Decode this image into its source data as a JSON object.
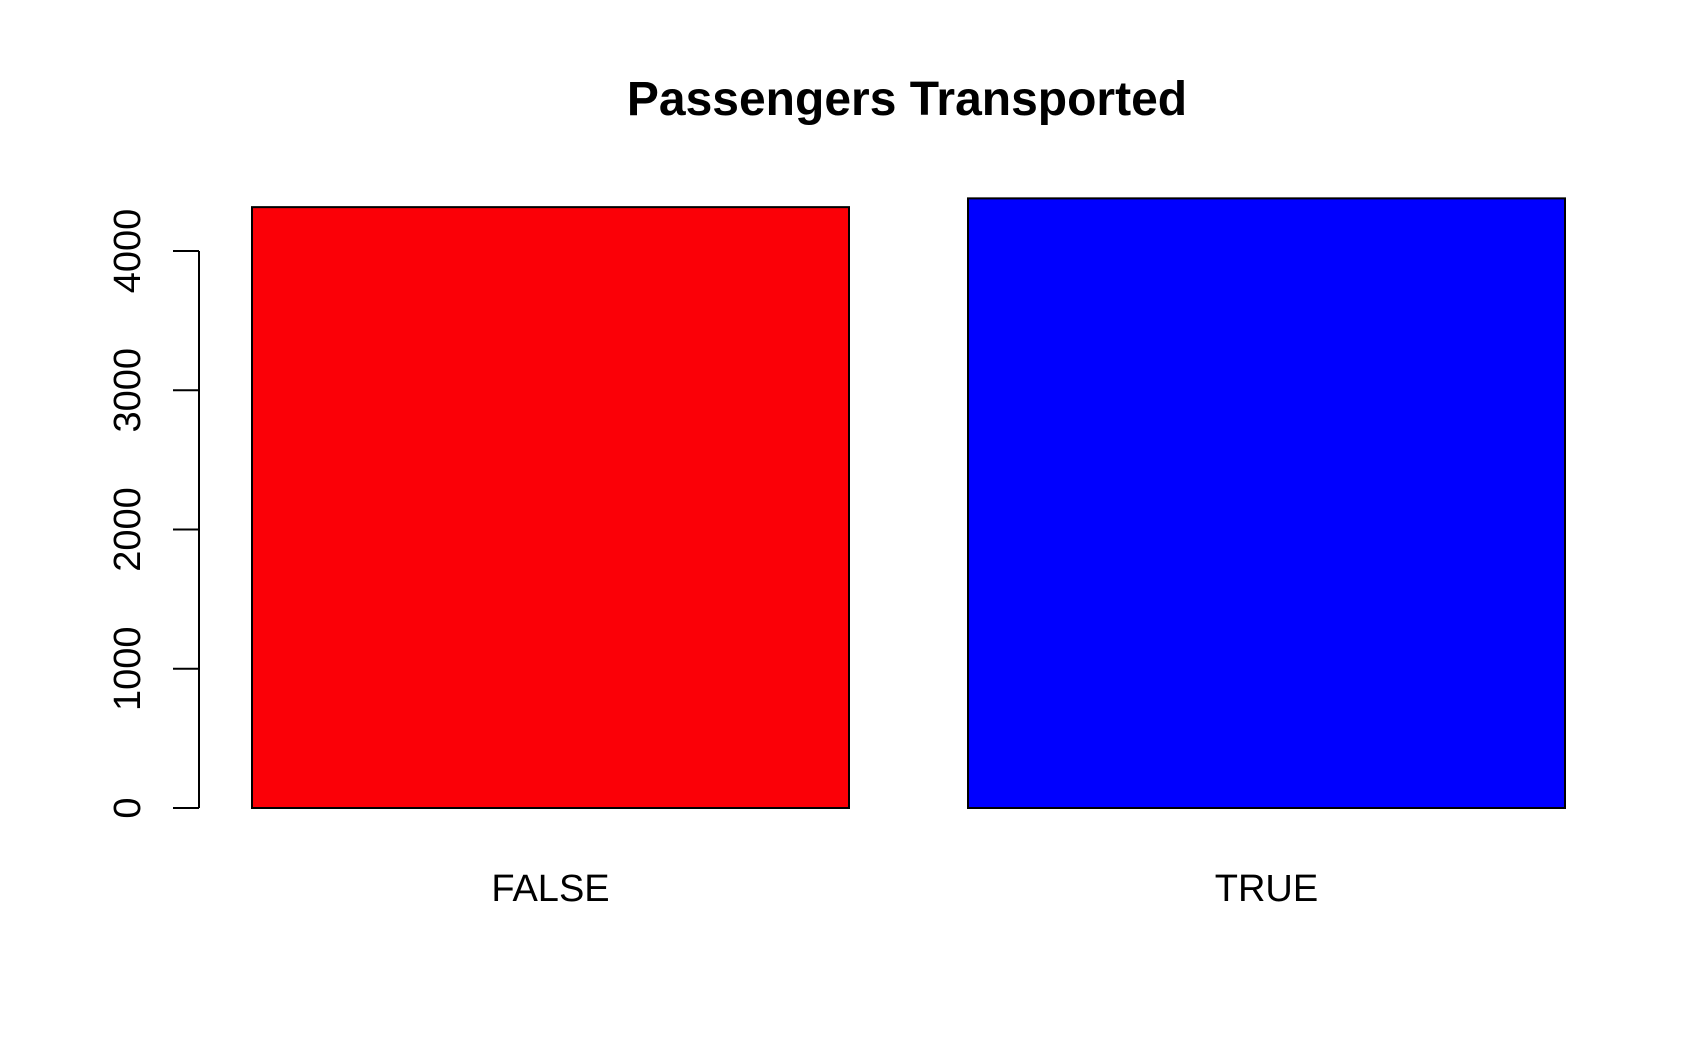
{
  "chart_data": {
    "type": "bar",
    "title": "Passengers Transported",
    "xlabel": "",
    "ylabel": "",
    "categories": [
      "FALSE",
      "TRUE"
    ],
    "values": [
      4315,
      4378
    ],
    "colors": [
      "#fb0007",
      "#0000ff"
    ],
    "border_color": "#000000",
    "ylim": [
      0,
      4378
    ],
    "yticks": [
      0,
      1000,
      2000,
      3000,
      4000
    ],
    "ytick_labels": [
      "0",
      "1000",
      "2000",
      "3000",
      "4000"
    ],
    "grid": false,
    "legend": "none"
  }
}
